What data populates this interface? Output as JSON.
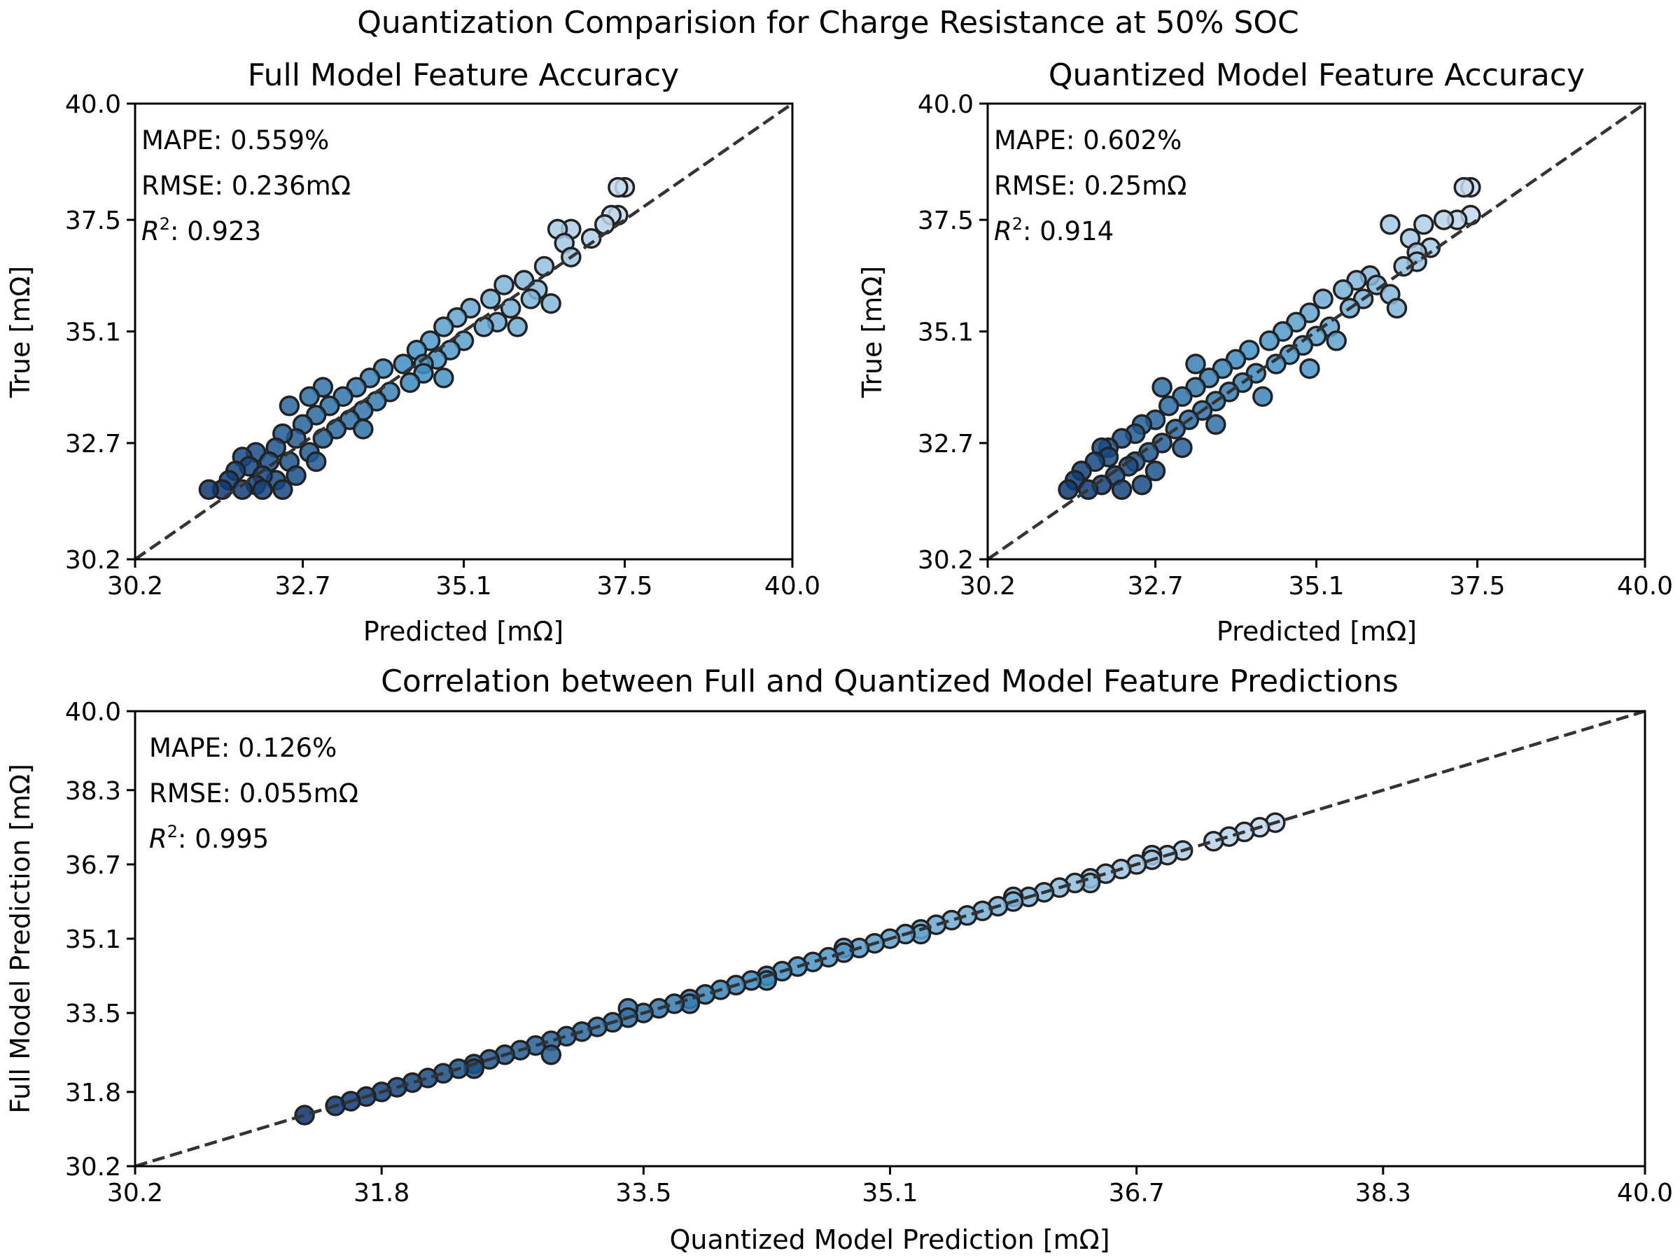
{
  "suptitle": "Quantization Comparision for Charge Resistance at 50% SOC",
  "colors": {
    "marker_light": "#c6dbef",
    "marker_mid": "#4292c6",
    "marker_dark": "#08306b",
    "marker_edge": "#222222",
    "reference_line": "#333333"
  },
  "chart_data": [
    {
      "type": "scatter",
      "title": "Full Model Feature Accuracy",
      "xlabel": "Predicted [mΩ]",
      "ylabel": "True [mΩ]",
      "xlim": [
        30.2,
        40.0
      ],
      "ylim": [
        30.2,
        40.0
      ],
      "xticks": [
        "30.2",
        "32.7",
        "35.1",
        "37.5",
        "40.0"
      ],
      "yticks": [
        "30.2",
        "32.7",
        "35.1",
        "37.5",
        "40.0"
      ],
      "reference_line": "y = x (dashed)",
      "annotations": {
        "mape": "MAPE: 0.559%",
        "rmse": "RMSE: 0.236mΩ",
        "r2_value": ": 0.923"
      },
      "series": [
        {
          "points": [
            [
              31.3,
              31.7
            ],
            [
              31.5,
              31.7
            ],
            [
              31.6,
              31.9
            ],
            [
              31.7,
              32.1
            ],
            [
              31.8,
              31.7
            ],
            [
              31.9,
              32.2
            ],
            [
              32.0,
              31.8
            ],
            [
              31.8,
              32.4
            ],
            [
              32.0,
              32.5
            ],
            [
              32.1,
              32.0
            ],
            [
              32.2,
              32.3
            ],
            [
              32.3,
              32.6
            ],
            [
              32.1,
              31.7
            ],
            [
              32.4,
              32.9
            ],
            [
              32.5,
              32.3
            ],
            [
              32.6,
              32.8
            ],
            [
              32.7,
              33.1
            ],
            [
              32.8,
              32.5
            ],
            [
              32.9,
              33.3
            ],
            [
              33.0,
              32.8
            ],
            [
              33.1,
              33.5
            ],
            [
              33.2,
              33.0
            ],
            [
              32.4,
              31.7
            ],
            [
              32.6,
              32.0
            ],
            [
              33.3,
              33.7
            ],
            [
              33.4,
              33.2
            ],
            [
              33.5,
              33.9
            ],
            [
              33.6,
              33.4
            ],
            [
              33.7,
              34.1
            ],
            [
              33.8,
              33.6
            ],
            [
              33.9,
              34.3
            ],
            [
              34.0,
              33.8
            ],
            [
              34.2,
              34.4
            ],
            [
              34.3,
              34.0
            ],
            [
              34.4,
              34.7
            ],
            [
              34.5,
              34.2
            ],
            [
              34.6,
              34.9
            ],
            [
              34.7,
              34.5
            ],
            [
              34.8,
              35.2
            ],
            [
              34.9,
              34.7
            ],
            [
              35.0,
              35.4
            ],
            [
              35.1,
              34.9
            ],
            [
              35.2,
              35.6
            ],
            [
              35.4,
              35.2
            ],
            [
              35.5,
              35.8
            ],
            [
              35.6,
              35.3
            ],
            [
              35.7,
              36.1
            ],
            [
              35.8,
              35.6
            ],
            [
              36.0,
              36.2
            ],
            [
              36.1,
              35.8
            ],
            [
              36.2,
              36.0
            ],
            [
              36.3,
              36.5
            ],
            [
              36.5,
              37.3
            ],
            [
              36.6,
              37.0
            ],
            [
              36.7,
              37.3
            ],
            [
              36.7,
              36.7
            ],
            [
              37.0,
              37.1
            ],
            [
              37.2,
              37.4
            ],
            [
              37.3,
              37.6
            ],
            [
              37.4,
              38.2
            ],
            [
              37.5,
              38.2
            ],
            [
              37.4,
              37.6
            ],
            [
              36.4,
              35.7
            ],
            [
              35.9,
              35.2
            ],
            [
              34.8,
              34.1
            ],
            [
              34.5,
              34.4
            ],
            [
              33.6,
              33.0
            ],
            [
              33.0,
              33.9
            ],
            [
              32.5,
              33.5
            ],
            [
              32.9,
              32.3
            ],
            [
              32.3,
              31.9
            ],
            [
              32.8,
              33.7
            ]
          ]
        }
      ]
    },
    {
      "type": "scatter",
      "title": "Quantized Model Feature Accuracy",
      "xlabel": "Predicted [mΩ]",
      "ylabel": "True [mΩ]",
      "xlim": [
        30.2,
        40.0
      ],
      "ylim": [
        30.2,
        40.0
      ],
      "xticks": [
        "30.2",
        "32.7",
        "35.1",
        "37.5",
        "40.0"
      ],
      "yticks": [
        "30.2",
        "32.7",
        "35.1",
        "37.5",
        "40.0"
      ],
      "reference_line": "y = x (dashed)",
      "annotations": {
        "mape": "MAPE: 0.602%",
        "rmse": "RMSE: 0.25mΩ",
        "r2_value": ": 0.914"
      },
      "series": [
        {
          "points": [
            [
              31.4,
              31.7
            ],
            [
              31.5,
              31.9
            ],
            [
              31.6,
              32.1
            ],
            [
              31.7,
              31.7
            ],
            [
              31.8,
              32.3
            ],
            [
              31.9,
              31.8
            ],
            [
              32.0,
              32.4
            ],
            [
              32.1,
              32.0
            ],
            [
              32.0,
              32.6
            ],
            [
              32.2,
              32.8
            ],
            [
              32.3,
              32.2
            ],
            [
              32.4,
              32.9
            ],
            [
              32.2,
              31.7
            ],
            [
              32.5,
              33.1
            ],
            [
              32.6,
              32.5
            ],
            [
              32.7,
              33.2
            ],
            [
              32.8,
              32.7
            ],
            [
              32.9,
              33.5
            ],
            [
              33.0,
              33.0
            ],
            [
              33.1,
              33.7
            ],
            [
              33.2,
              33.2
            ],
            [
              33.3,
              33.9
            ],
            [
              32.5,
              31.8
            ],
            [
              32.7,
              32.1
            ],
            [
              33.4,
              33.4
            ],
            [
              33.5,
              34.1
            ],
            [
              33.6,
              33.6
            ],
            [
              33.7,
              34.3
            ],
            [
              33.8,
              33.8
            ],
            [
              33.9,
              34.5
            ],
            [
              34.0,
              34.0
            ],
            [
              34.1,
              34.7
            ],
            [
              34.2,
              34.2
            ],
            [
              34.4,
              34.9
            ],
            [
              34.5,
              34.4
            ],
            [
              34.6,
              35.1
            ],
            [
              34.7,
              34.6
            ],
            [
              34.8,
              35.3
            ],
            [
              34.9,
              34.8
            ],
            [
              35.0,
              35.5
            ],
            [
              35.1,
              35.0
            ],
            [
              35.2,
              35.8
            ],
            [
              35.3,
              35.2
            ],
            [
              35.5,
              36.0
            ],
            [
              35.6,
              35.6
            ],
            [
              35.7,
              36.2
            ],
            [
              35.8,
              35.8
            ],
            [
              35.9,
              36.3
            ],
            [
              36.0,
              36.1
            ],
            [
              36.2,
              35.9
            ],
            [
              36.3,
              35.6
            ],
            [
              36.4,
              36.5
            ],
            [
              36.2,
              37.4
            ],
            [
              36.5,
              37.1
            ],
            [
              36.6,
              36.8
            ],
            [
              36.7,
              37.4
            ],
            [
              36.8,
              36.9
            ],
            [
              37.0,
              37.5
            ],
            [
              37.2,
              37.5
            ],
            [
              37.3,
              38.2
            ],
            [
              37.4,
              38.2
            ],
            [
              37.4,
              37.6
            ],
            [
              35.0,
              34.3
            ],
            [
              34.3,
              33.7
            ],
            [
              33.6,
              33.1
            ],
            [
              33.1,
              32.6
            ],
            [
              32.4,
              32.3
            ],
            [
              33.3,
              34.4
            ],
            [
              32.8,
              33.9
            ],
            [
              31.9,
              32.6
            ],
            [
              36.6,
              36.6
            ],
            [
              35.4,
              34.9
            ]
          ]
        }
      ]
    },
    {
      "type": "scatter",
      "title": "Correlation between Full and Quantized Model Feature Predictions",
      "xlabel": "Quantized Model Prediction [mΩ]",
      "ylabel": "Full Model Prediction [mΩ]",
      "xlim": [
        30.2,
        40.0
      ],
      "ylim": [
        30.2,
        40.0
      ],
      "xticks": [
        "30.2",
        "31.8",
        "33.5",
        "35.1",
        "36.7",
        "38.3",
        "40.0"
      ],
      "yticks": [
        "30.2",
        "31.8",
        "33.5",
        "35.1",
        "36.7",
        "38.3",
        "40.0"
      ],
      "reference_line": "y = x (dashed)",
      "annotations": {
        "mape": "MAPE: 0.126%",
        "rmse": "RMSE: 0.055mΩ",
        "r2_value": ": 0.995"
      },
      "series": [
        {
          "points": [
            [
              31.3,
              31.3
            ],
            [
              31.5,
              31.5
            ],
            [
              31.6,
              31.6
            ],
            [
              31.7,
              31.7
            ],
            [
              31.8,
              31.8
            ],
            [
              31.9,
              31.9
            ],
            [
              32.0,
              32.0
            ],
            [
              32.1,
              32.1
            ],
            [
              32.2,
              32.2
            ],
            [
              32.3,
              32.3
            ],
            [
              32.4,
              32.4
            ],
            [
              32.5,
              32.5
            ],
            [
              32.6,
              32.6
            ],
            [
              32.7,
              32.7
            ],
            [
              32.8,
              32.8
            ],
            [
              32.9,
              32.9
            ],
            [
              33.0,
              33.0
            ],
            [
              33.1,
              33.1
            ],
            [
              33.2,
              33.2
            ],
            [
              33.3,
              33.3
            ],
            [
              33.4,
              33.4
            ],
            [
              33.5,
              33.5
            ],
            [
              33.6,
              33.6
            ],
            [
              33.7,
              33.7
            ],
            [
              33.8,
              33.8
            ],
            [
              33.9,
              33.9
            ],
            [
              34.0,
              34.0
            ],
            [
              34.1,
              34.1
            ],
            [
              34.2,
              34.2
            ],
            [
              34.3,
              34.3
            ],
            [
              34.4,
              34.4
            ],
            [
              34.5,
              34.5
            ],
            [
              34.6,
              34.6
            ],
            [
              34.7,
              34.7
            ],
            [
              34.8,
              34.8
            ],
            [
              34.9,
              34.9
            ],
            [
              35.0,
              35.0
            ],
            [
              35.1,
              35.1
            ],
            [
              35.2,
              35.2
            ],
            [
              35.3,
              35.3
            ],
            [
              35.4,
              35.4
            ],
            [
              35.5,
              35.5
            ],
            [
              35.6,
              35.6
            ],
            [
              35.7,
              35.7
            ],
            [
              35.8,
              35.8
            ],
            [
              35.9,
              35.9
            ],
            [
              36.0,
              36.0
            ],
            [
              36.1,
              36.1
            ],
            [
              36.2,
              36.2
            ],
            [
              36.3,
              36.3
            ],
            [
              36.4,
              36.4
            ],
            [
              36.5,
              36.5
            ],
            [
              36.6,
              36.6
            ],
            [
              36.7,
              36.7
            ],
            [
              36.8,
              36.8
            ],
            [
              36.9,
              36.9
            ],
            [
              37.0,
              37.0
            ],
            [
              37.2,
              37.2
            ],
            [
              37.3,
              37.3
            ],
            [
              37.4,
              37.4
            ],
            [
              37.5,
              37.5
            ],
            [
              37.6,
              37.6
            ],
            [
              32.4,
              32.3
            ],
            [
              32.9,
              32.6
            ],
            [
              33.4,
              33.6
            ],
            [
              33.8,
              33.7
            ],
            [
              34.3,
              34.2
            ],
            [
              34.8,
              34.9
            ],
            [
              35.3,
              35.2
            ],
            [
              35.9,
              36.0
            ],
            [
              36.4,
              36.3
            ],
            [
              36.8,
              36.9
            ]
          ]
        }
      ]
    }
  ]
}
